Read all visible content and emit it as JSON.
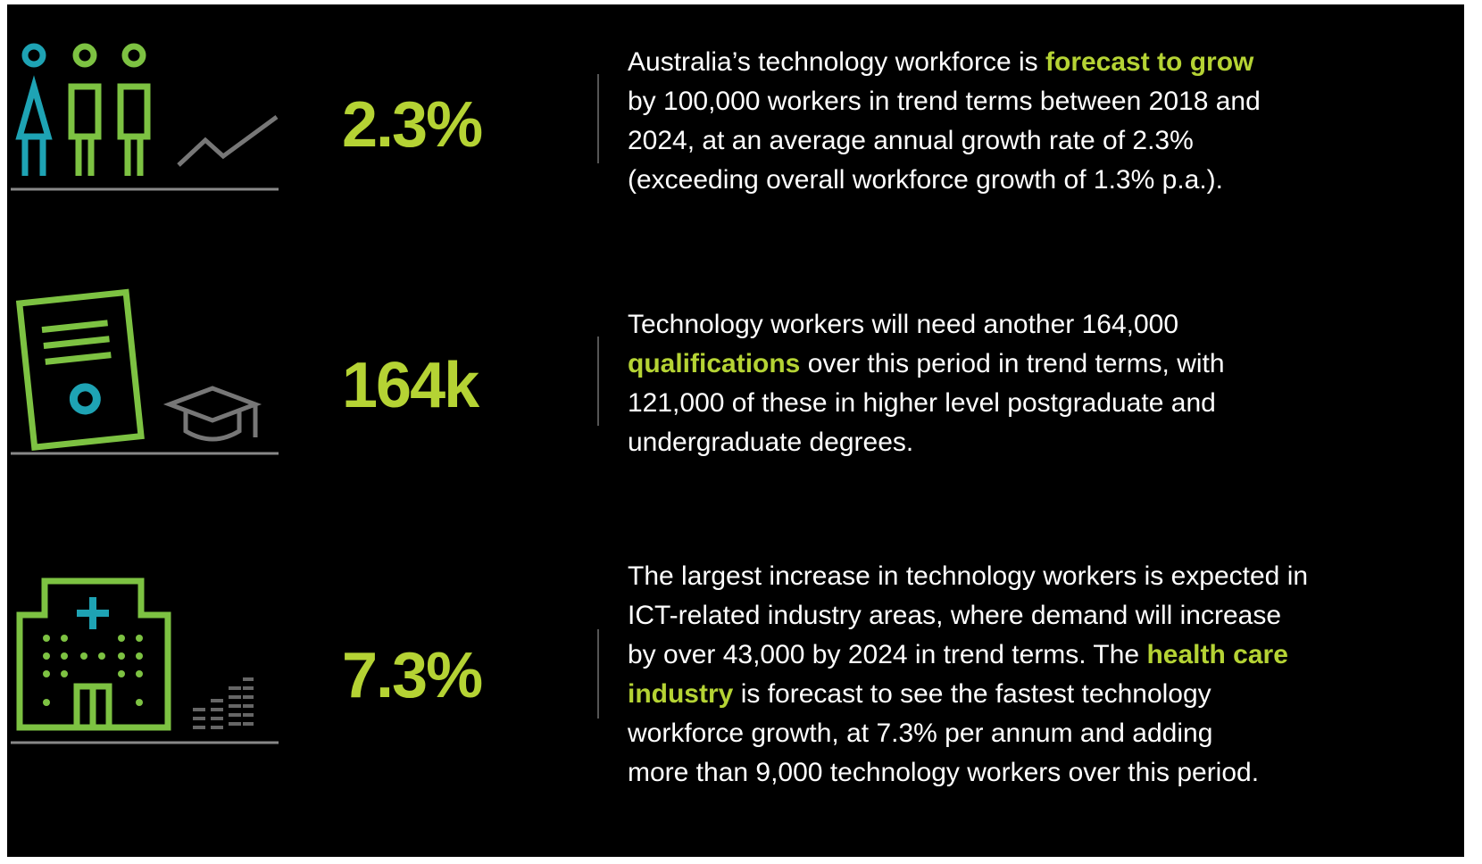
{
  "rows": [
    {
      "stat": "2.3%",
      "lines": [
        [
          {
            "text": "Australia’s technology workforce is "
          },
          {
            "text": "forecast to grow",
            "highlight": true
          }
        ],
        [
          {
            "text": "by 100,000 workers in trend terms between 2018 and"
          }
        ],
        [
          {
            "text": "2024, at an average annual growth rate of 2.3%"
          }
        ],
        [
          {
            "text": "(exceeding overall workforce growth of 1.3% p.a.)."
          }
        ]
      ]
    },
    {
      "stat": "164k",
      "lines": [
        [
          {
            "text": "Technology workers will need another 164,000"
          }
        ],
        [
          {
            "text": "qualifications",
            "highlight": true
          },
          {
            "text": " over this period in trend terms, with"
          }
        ],
        [
          {
            "text": "121,000 of these in higher level postgraduate and"
          }
        ],
        [
          {
            "text": "undergraduate degrees."
          }
        ]
      ]
    },
    {
      "stat": "7.3%",
      "lines": [
        [
          {
            "text": "The largest increase in technology workers is expected in"
          }
        ],
        [
          {
            "text": "ICT-related industry areas, where demand will increase"
          }
        ],
        [
          {
            "text": "by over 43,000 by 2024 in trend terms. The "
          },
          {
            "text": "health care",
            "highlight": true
          }
        ],
        [
          {
            "text": "industry",
            "highlight": true
          },
          {
            "text": " is forecast to see the fastest technology"
          }
        ],
        [
          {
            "text": "workforce growth, at 7.3% per annum and adding"
          }
        ],
        [
          {
            "text": "more than 9,000 technology workers over this period."
          }
        ]
      ]
    }
  ]
}
